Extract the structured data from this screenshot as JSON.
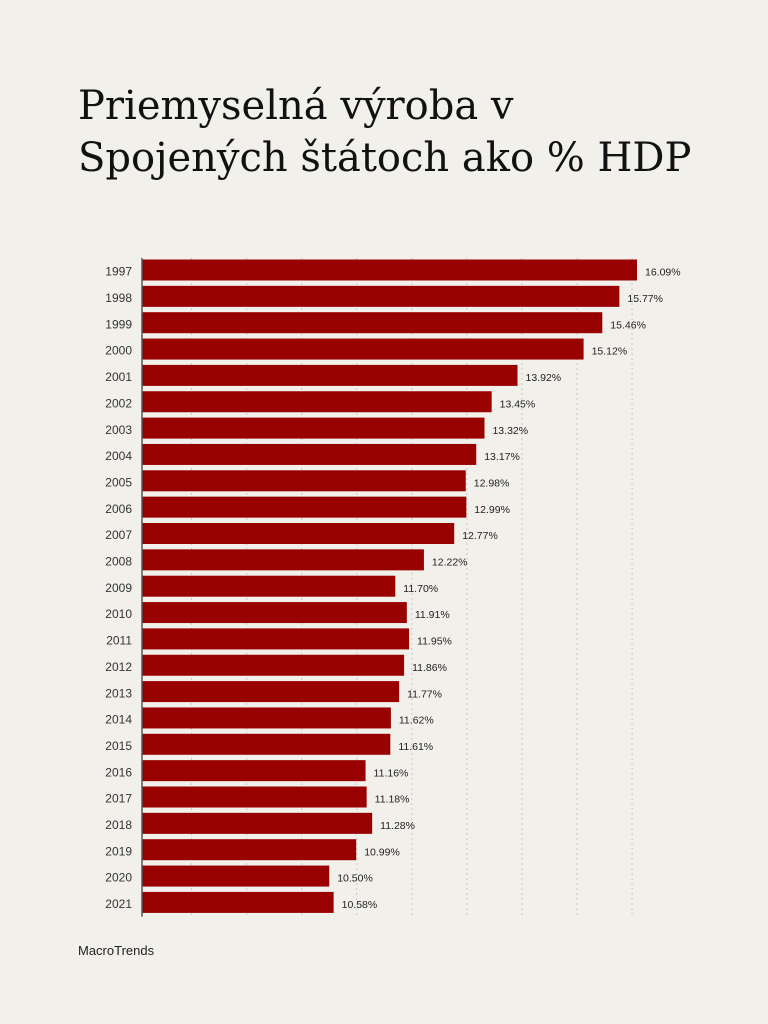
{
  "title": {
    "line1": "Priemyselná výroba v",
    "line2": "Spojených štátoch ako % HDP"
  },
  "source": "MacroTrends",
  "colors": {
    "bar": "#990000",
    "grid": "#c8c8c8",
    "axis": "#555555",
    "background": "#f2f0eb"
  },
  "chart_data": {
    "type": "bar",
    "orientation": "horizontal",
    "grid": true,
    "categories": [
      "1997",
      "1998",
      "1999",
      "2000",
      "2001",
      "2002",
      "2003",
      "2004",
      "2005",
      "2006",
      "2007",
      "2008",
      "2009",
      "2010",
      "2011",
      "2012",
      "2013",
      "2014",
      "2015",
      "2016",
      "2017",
      "2018",
      "2019",
      "2020",
      "2021"
    ],
    "values": [
      16.09,
      15.77,
      15.46,
      15.12,
      13.92,
      13.45,
      13.32,
      13.17,
      12.98,
      12.99,
      12.77,
      12.22,
      11.7,
      11.91,
      11.95,
      11.86,
      11.77,
      11.62,
      11.61,
      11.16,
      11.18,
      11.28,
      10.99,
      10.5,
      10.58
    ],
    "value_labels": [
      "16.09%",
      "15.77%",
      "15.46%",
      "15.12%",
      "13.92%",
      "13.45%",
      "13.32%",
      "13.17%",
      "12.98%",
      "12.99%",
      "12.77%",
      "12.22%",
      "11.70%",
      "11.91%",
      "11.95%",
      "11.86%",
      "11.77%",
      "11.62%",
      "11.61%",
      "11.16%",
      "11.18%",
      "11.28%",
      "10.99%",
      "10.50%",
      "10.58%"
    ]
  }
}
